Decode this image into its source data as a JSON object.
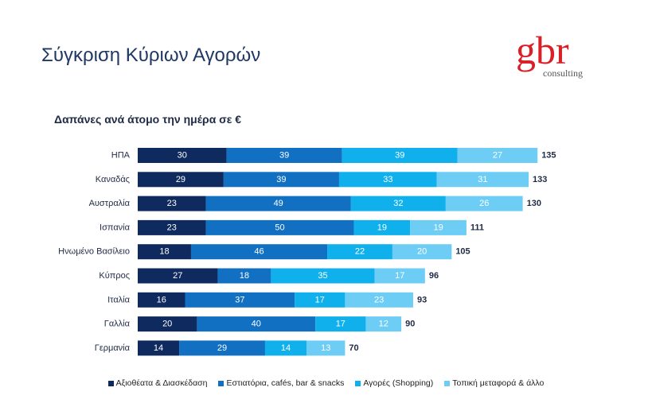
{
  "page_title": "Σύγκριση Κύριων Αγορών",
  "logo": {
    "main": "gbr",
    "sub": "consulting"
  },
  "chart_data": {
    "type": "bar",
    "orientation": "horizontal",
    "stacked": true,
    "title": "Δαπάνες ανά άτομο την ημέρα σε €",
    "xlabel": "",
    "ylabel": "",
    "xlim": [
      0,
      140
    ],
    "grid": false,
    "legend_position": "bottom",
    "categories": [
      "ΗΠΑ",
      "Καναδάς",
      "Αυστραλία",
      "Ισπανία",
      "Ηνωμένο Βασίλειο",
      "Κύπρος",
      "Ιταλία",
      "Γαλλία",
      "Γερμανία"
    ],
    "series": [
      {
        "name": "Αξιοθέατα & Διασκέδαση",
        "color": "#0f2a5e",
        "values": [
          30,
          29,
          23,
          23,
          18,
          27,
          16,
          20,
          14
        ]
      },
      {
        "name": "Εστιατόρια, cafés, bar & snacks",
        "color": "#1170c2",
        "values": [
          39,
          39,
          49,
          50,
          46,
          18,
          37,
          40,
          29
        ]
      },
      {
        "name": "Αγορές (Shopping)",
        "color": "#10b0ec",
        "values": [
          39,
          33,
          32,
          19,
          22,
          35,
          17,
          17,
          14
        ]
      },
      {
        "name": "Τοπική μεταφορά & άλλο",
        "color": "#6dcdf5",
        "values": [
          27,
          31,
          26,
          19,
          20,
          17,
          23,
          12,
          13
        ]
      }
    ],
    "totals": [
      135,
      133,
      130,
      111,
      105,
      96,
      93,
      90,
      70
    ]
  }
}
